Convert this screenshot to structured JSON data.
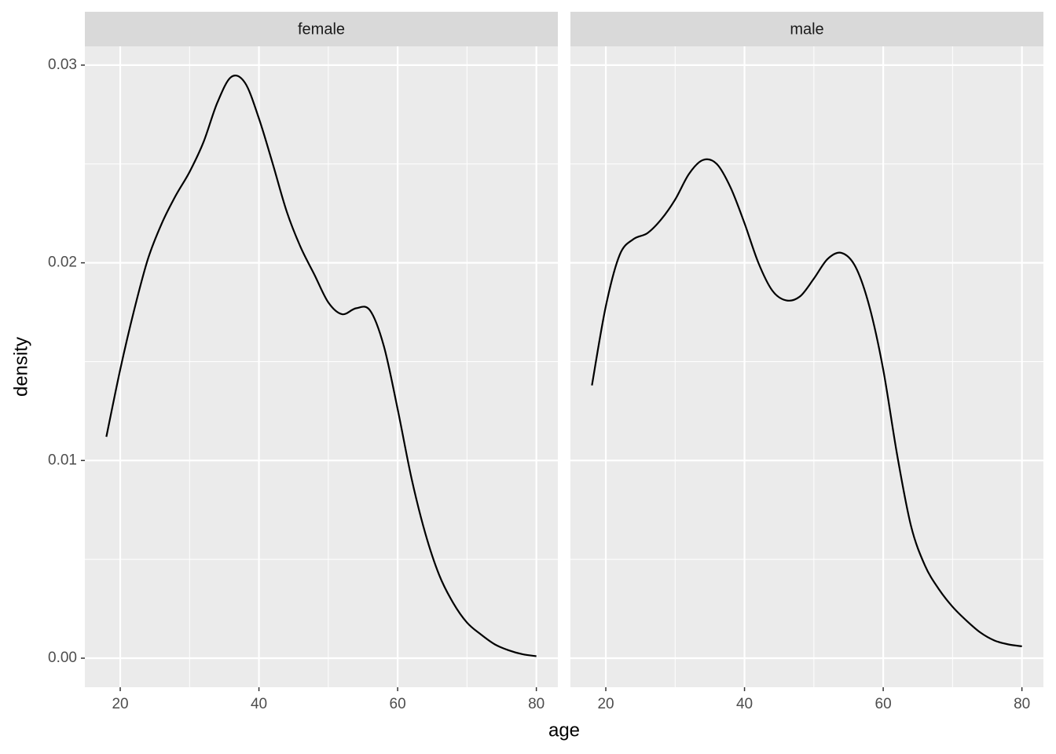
{
  "chart_data": {
    "type": "line",
    "xlabel": "age",
    "ylabel": "density",
    "color": "#000000",
    "grid": true,
    "xlim": [
      14.9,
      83.1
    ],
    "xticks": [
      20,
      40,
      60,
      80
    ],
    "ylim": [
      -0.00147,
      0.03095
    ],
    "yticks": [
      {
        "value": 0,
        "label": "0.00"
      },
      0.01,
      0.02,
      0.03
    ],
    "panels": [
      {
        "title": "female",
        "x": [
          18,
          20,
          22,
          24,
          26,
          28,
          30,
          32,
          34,
          36,
          38,
          40,
          42,
          44,
          46,
          48,
          50,
          52,
          54,
          56,
          58,
          60,
          62,
          64,
          66,
          68,
          70,
          72,
          74,
          76,
          78,
          80
        ],
        "values": [
          0.0112,
          0.0146,
          0.0176,
          0.0202,
          0.022,
          0.0234,
          0.0246,
          0.0261,
          0.0281,
          0.0294,
          0.0291,
          0.0273,
          0.025,
          0.0226,
          0.0208,
          0.0194,
          0.018,
          0.0174,
          0.0177,
          0.0176,
          0.0158,
          0.0126,
          0.0091,
          0.0063,
          0.0042,
          0.0028,
          0.0018,
          0.0012,
          0.0007,
          0.0004,
          0.0002,
          0.0001
        ]
      },
      {
        "title": "male",
        "x": [
          18,
          20,
          22,
          24,
          26,
          28,
          30,
          32,
          34,
          36,
          38,
          40,
          42,
          44,
          46,
          48,
          50,
          52,
          54,
          56,
          58,
          60,
          62,
          64,
          66,
          68,
          70,
          72,
          74,
          76,
          78,
          80
        ],
        "values": [
          0.0138,
          0.0178,
          0.0204,
          0.0212,
          0.0215,
          0.0222,
          0.0232,
          0.0245,
          0.0252,
          0.025,
          0.0238,
          0.022,
          0.02,
          0.0186,
          0.0181,
          0.0183,
          0.0192,
          0.0202,
          0.0205,
          0.0198,
          0.0178,
          0.0146,
          0.0103,
          0.0067,
          0.0047,
          0.0035,
          0.0026,
          0.0019,
          0.0013,
          0.0009,
          0.0007,
          0.0006
        ]
      }
    ]
  }
}
